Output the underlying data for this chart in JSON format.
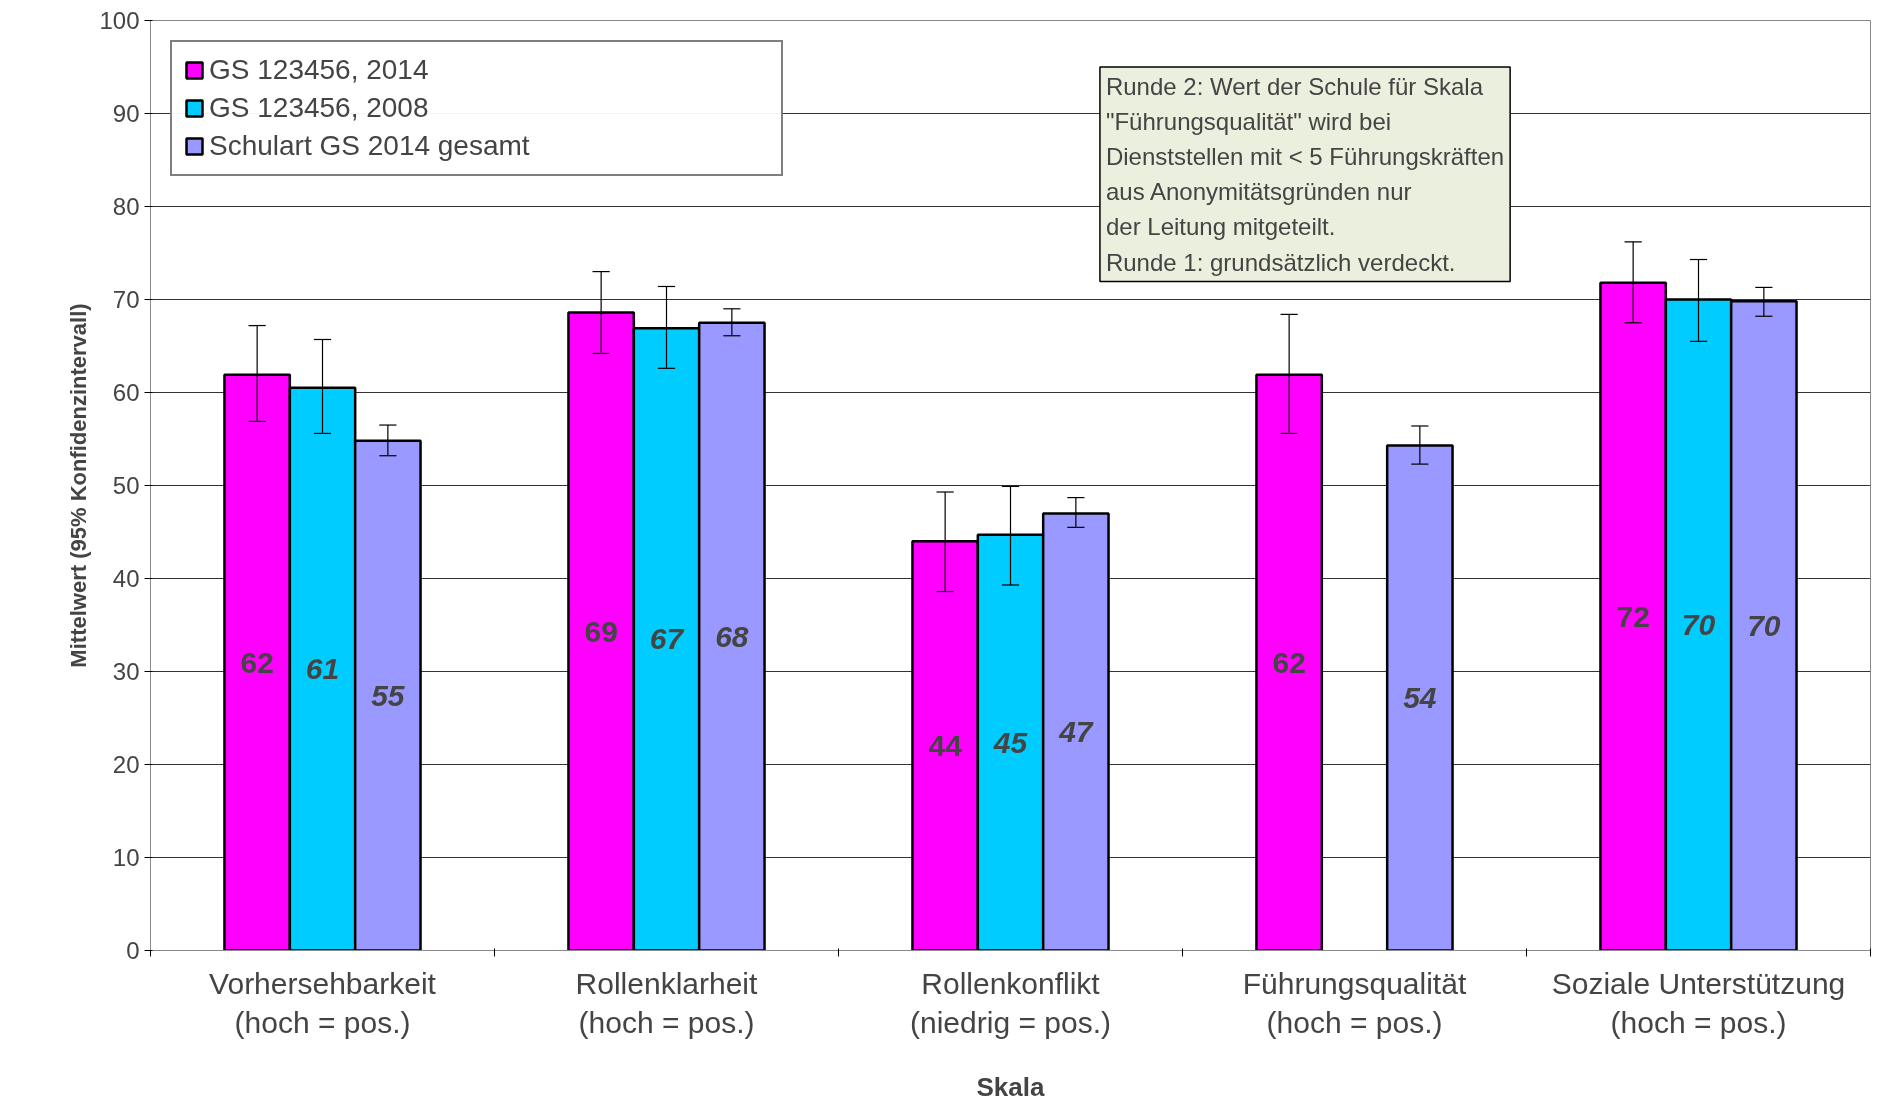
{
  "chart_data": {
    "type": "bar",
    "xlabel": "Skala",
    "ylabel": "Mittelwert (95% Konfidenzintervall)",
    "categories": [
      "Vorhersehbarkeit\n(hoch = pos.)",
      "Rollenklarheit\n(hoch = pos.)",
      "Rollenkonflikt\n(niedrig = pos.)",
      "Führungsqualität\n(hoch = pos.)",
      "Soziale Unterstützung\n(hoch = pos.)"
    ],
    "series": [
      {
        "name": "GS 123456, 2014",
        "color": "#ff00ff",
        "values": [
          61.9,
          68.6,
          44.0,
          61.9,
          71.8
        ],
        "value_labels": [
          "62",
          "69",
          "44",
          "62",
          "72"
        ],
        "errors": [
          [
            56.9,
            67.2
          ],
          [
            64.2,
            73.0
          ],
          [
            38.6,
            49.3
          ],
          [
            55.6,
            68.4
          ],
          [
            67.5,
            76.2
          ]
        ]
      },
      {
        "name": "GS 123456, 2008",
        "color": "#00ccff",
        "values": [
          60.5,
          66.9,
          44.7,
          null,
          70.0
        ],
        "value_labels": [
          "61",
          "67",
          "45",
          null,
          "70"
        ],
        "errors": [
          [
            55.6,
            65.7
          ],
          [
            62.6,
            71.4
          ],
          [
            39.3,
            49.9
          ],
          null,
          [
            65.5,
            74.3
          ]
        ]
      },
      {
        "name": "Schulart GS 2014 gesamt",
        "color": "#9999ff",
        "values": [
          54.8,
          67.5,
          47.0,
          54.3,
          69.8
        ],
        "value_labels": [
          "55",
          "68",
          "47",
          "54",
          "70"
        ],
        "errors": [
          [
            53.2,
            56.5
          ],
          [
            66.1,
            69.0
          ],
          [
            45.5,
            48.7
          ],
          [
            52.3,
            56.4
          ],
          [
            68.2,
            71.3
          ]
        ]
      }
    ],
    "ylim": [
      0,
      100
    ],
    "yticks": [
      0,
      10,
      20,
      30,
      40,
      50,
      60,
      70,
      80,
      90,
      100
    ],
    "grid": "y",
    "legend": "top left",
    "annotations": [
      "Runde 2: Wert der Schule für Skala\n\"Führungsqualität\" wird bei\nDienststellen mit < 5 Führungskräften\naus Anonymitätsgründen nur\nder Leitung mitgeteilt.\nRunde 1: grundsätzlich verdeckt."
    ]
  }
}
